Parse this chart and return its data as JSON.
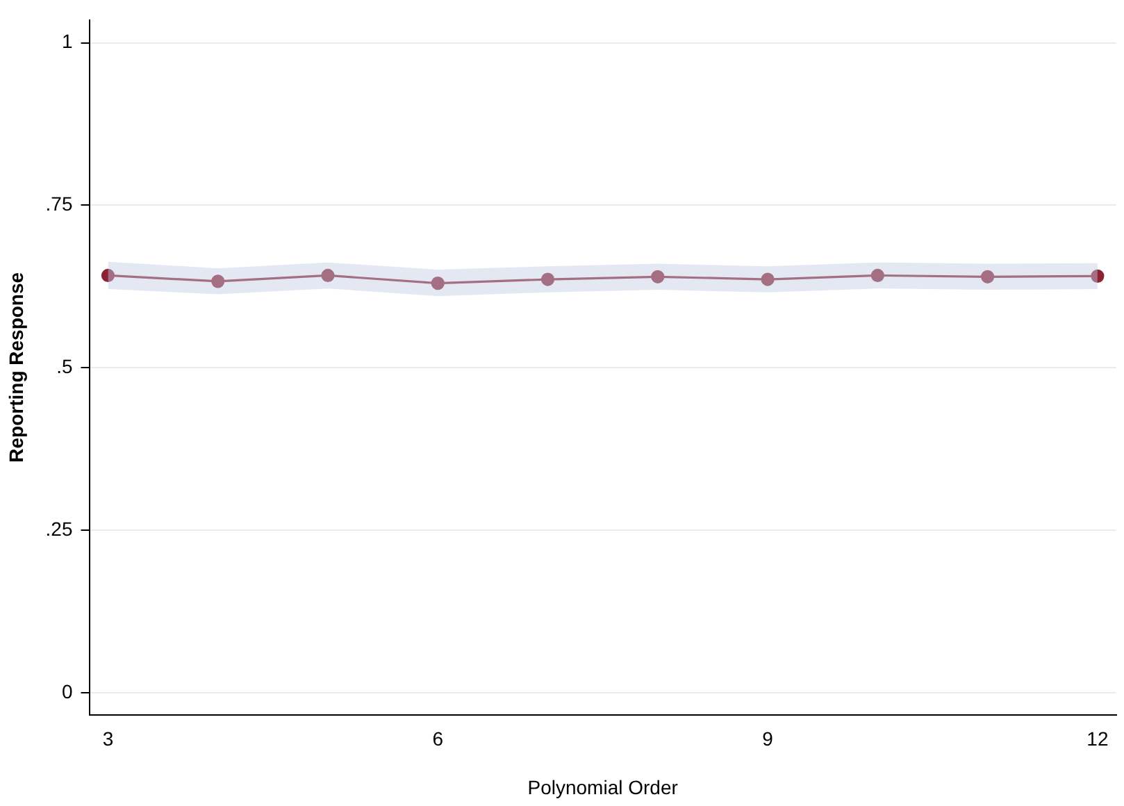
{
  "chart_data": {
    "type": "line",
    "xlabel": "Polynomial Order",
    "ylabel": "Reporting Response",
    "x": [
      3,
      4,
      5,
      6,
      7,
      8,
      9,
      10,
      11,
      12
    ],
    "series": [
      {
        "color": "#8b2332",
        "values": [
          0.642,
          0.633,
          0.642,
          0.63,
          0.636,
          0.64,
          0.636,
          0.642,
          0.64,
          0.641
        ],
        "lower": [
          0.621,
          0.613,
          0.622,
          0.61,
          0.616,
          0.62,
          0.616,
          0.622,
          0.62,
          0.621
        ],
        "upper": [
          0.663,
          0.653,
          0.662,
          0.651,
          0.656,
          0.66,
          0.656,
          0.662,
          0.66,
          0.661
        ]
      }
    ],
    "xlim": [
      2.83,
      12.17
    ],
    "xticks": [
      3,
      6,
      9,
      12
    ],
    "ylim": [
      -0.034,
      1.035
    ],
    "yticks": [
      {
        "value": 0,
        "label": "0"
      },
      {
        "value": 0.25,
        "label": ".25"
      },
      {
        "value": 0.5,
        "label": ".5"
      },
      {
        "value": 0.75,
        "label": ".75"
      },
      {
        "value": 1,
        "label": "1"
      }
    ],
    "grid": "y",
    "marker": "circle",
    "line_style": "solid",
    "legend": false
  }
}
